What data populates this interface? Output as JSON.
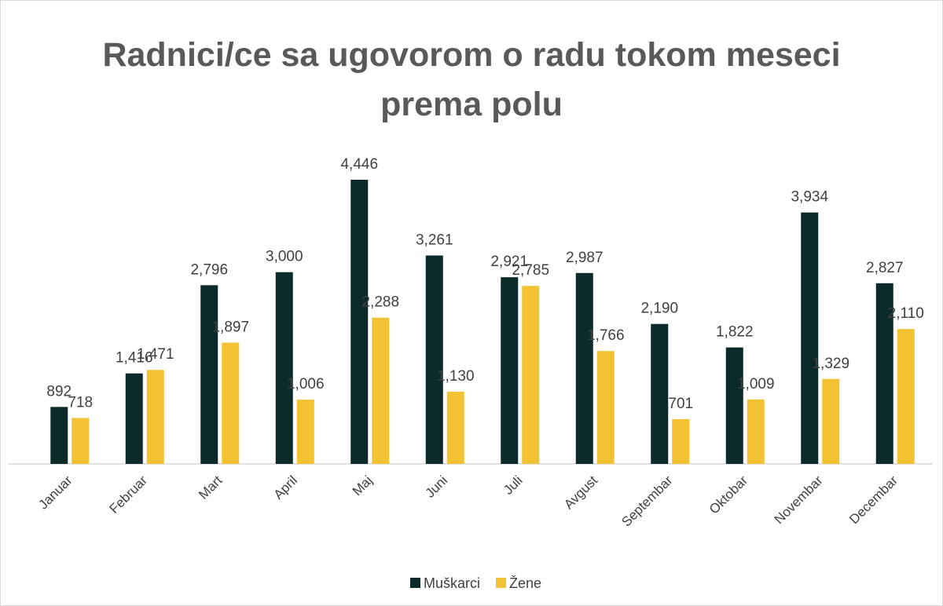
{
  "chart_data": {
    "type": "bar",
    "title": "Radnici/ce sa ugovorom o radu tokom meseci prema polu",
    "categories": [
      "Januar",
      "Februar",
      "Mart",
      "April",
      "Maj",
      "Juni",
      "Juli",
      "Avgust",
      "Septembar",
      "Oktobar",
      "Novembar",
      "Decembar"
    ],
    "series": [
      {
        "name": "Muškarci",
        "color": "#0d2a2a",
        "values": [
          892,
          1416,
          2796,
          3000,
          4446,
          3261,
          2921,
          2987,
          2190,
          1822,
          3934,
          2827
        ],
        "value_labels": [
          "892",
          "1,416",
          "2,796",
          "3,000",
          "4,446",
          "3,261",
          "2,921",
          "2,987",
          "2,190",
          "1,822",
          "3,934",
          "2,827"
        ]
      },
      {
        "name": "Žene",
        "color": "#f2c232",
        "values": [
          718,
          1471,
          1897,
          1006,
          2288,
          1130,
          2785,
          1766,
          701,
          1009,
          1329,
          2110
        ],
        "value_labels": [
          "718",
          "1,471",
          "1,897",
          "1,006",
          "2,288",
          "1,130",
          "2,785",
          "1,766",
          "701",
          "1,009",
          "1,329",
          "2,110"
        ]
      }
    ],
    "legend": "bottom"
  }
}
